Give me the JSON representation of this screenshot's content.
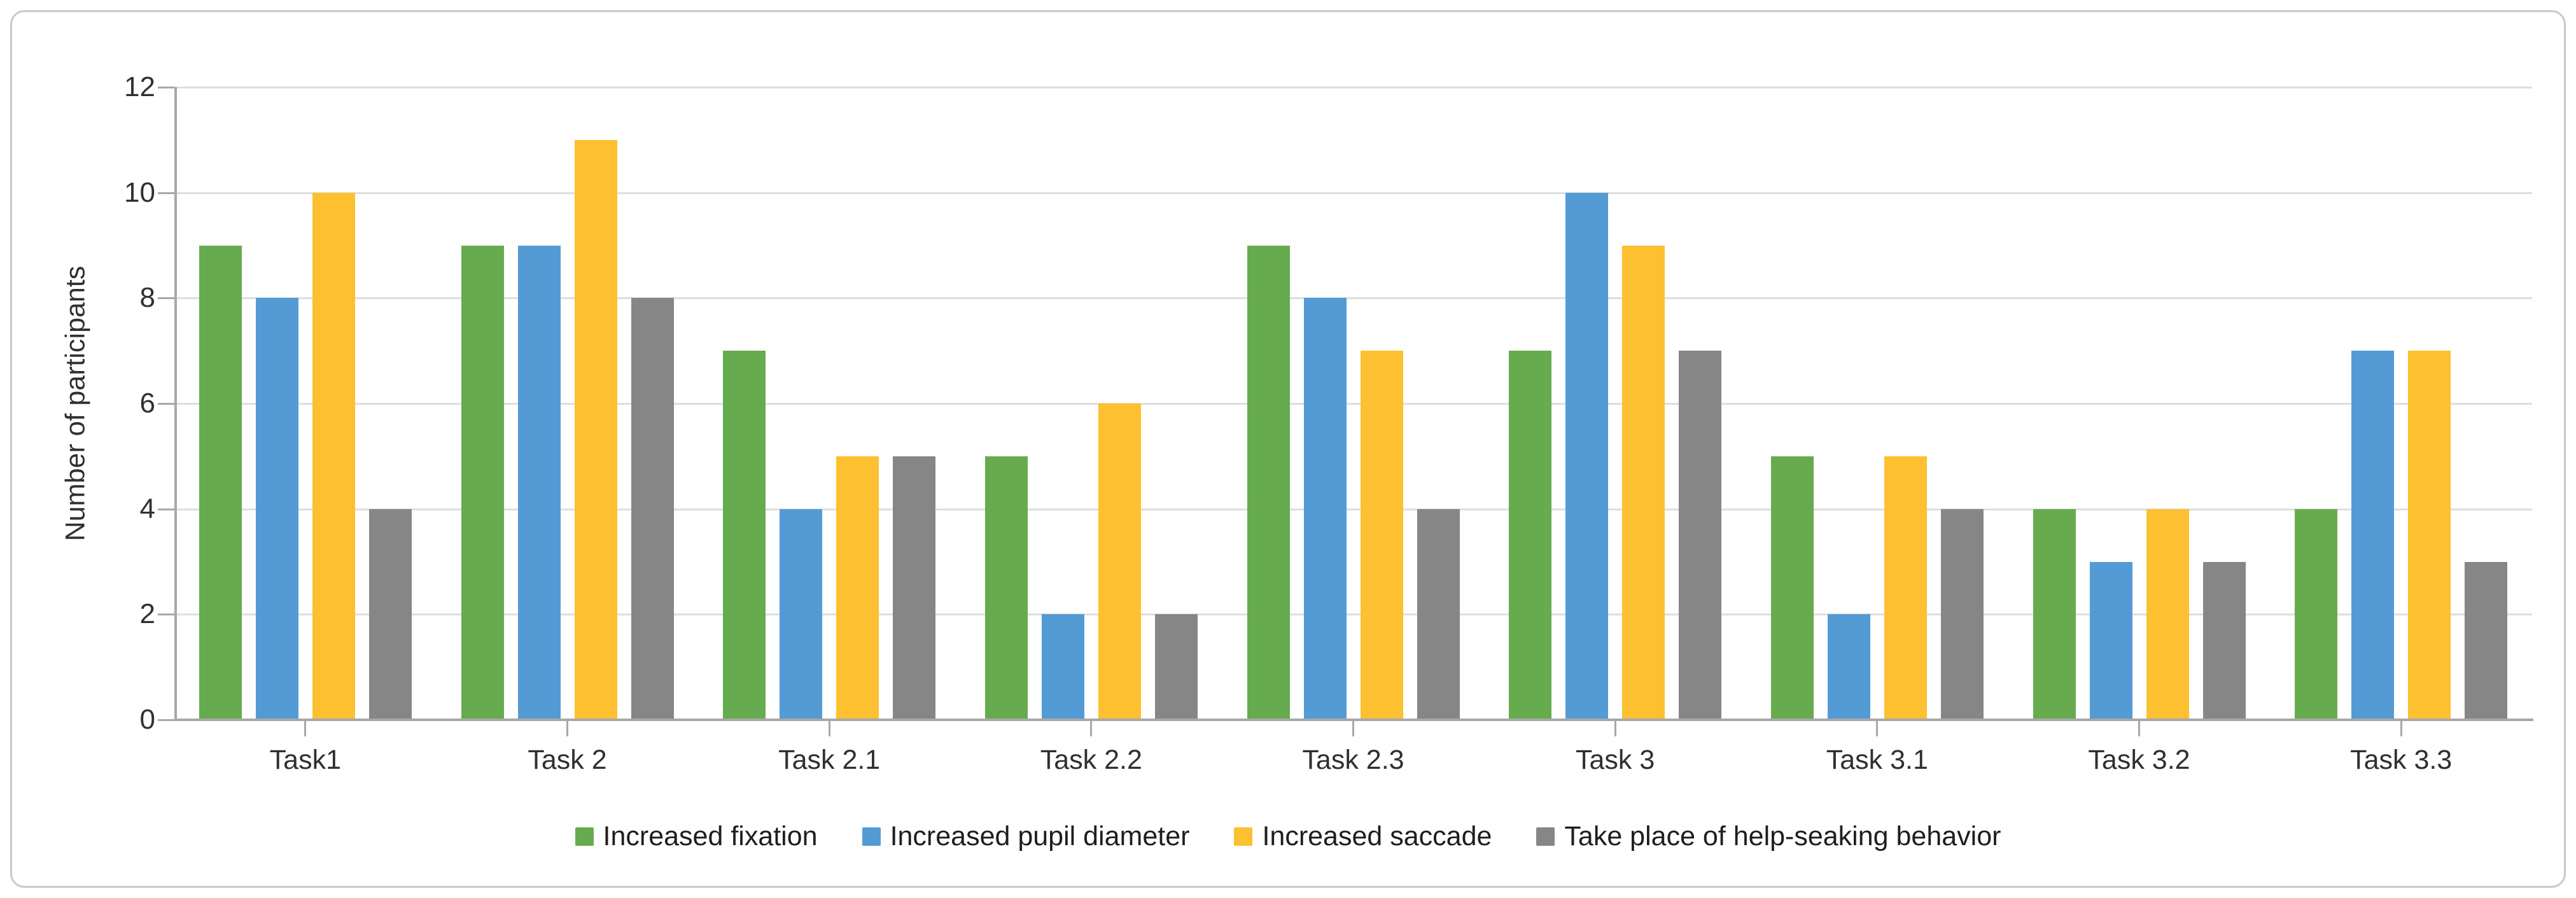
{
  "chart_data": {
    "type": "bar",
    "title": "",
    "xlabel": "",
    "ylabel": "Number of participants",
    "ylim": [
      0,
      12
    ],
    "yticks": [
      0,
      2,
      4,
      6,
      8,
      10,
      12
    ],
    "grid": "horizontal",
    "legend_position": "bottom-center",
    "categories": [
      "Task1",
      "Task 2",
      "Task 2.1",
      "Task 2.2",
      "Task 2.3",
      "Task 3",
      "Task 3.1",
      "Task 3.2",
      "Task 3.3"
    ],
    "series": [
      {
        "name": "Increased fixation",
        "color": "#67AB4F",
        "values": [
          9,
          9,
          7,
          5,
          9,
          7,
          5,
          4,
          4
        ]
      },
      {
        "name": "Increased pupil diameter",
        "color": "#549BD6",
        "values": [
          8,
          9,
          4,
          2,
          8,
          10,
          2,
          3,
          7
        ]
      },
      {
        "name": "Increased saccade",
        "color": "#FDC031",
        "values": [
          10,
          11,
          5,
          6,
          7,
          9,
          5,
          4,
          7
        ]
      },
      {
        "name": "Take place of help-seaking behavior",
        "color": "#868686",
        "values": [
          4,
          8,
          5,
          2,
          4,
          7,
          4,
          3,
          3
        ]
      }
    ]
  },
  "style": {
    "grid_color": "#DEDEDE",
    "axis_color": "#A8A8A8",
    "text_color": "#303030",
    "card_border_color": "#C9C9C9",
    "background": "#FFFFFF"
  }
}
